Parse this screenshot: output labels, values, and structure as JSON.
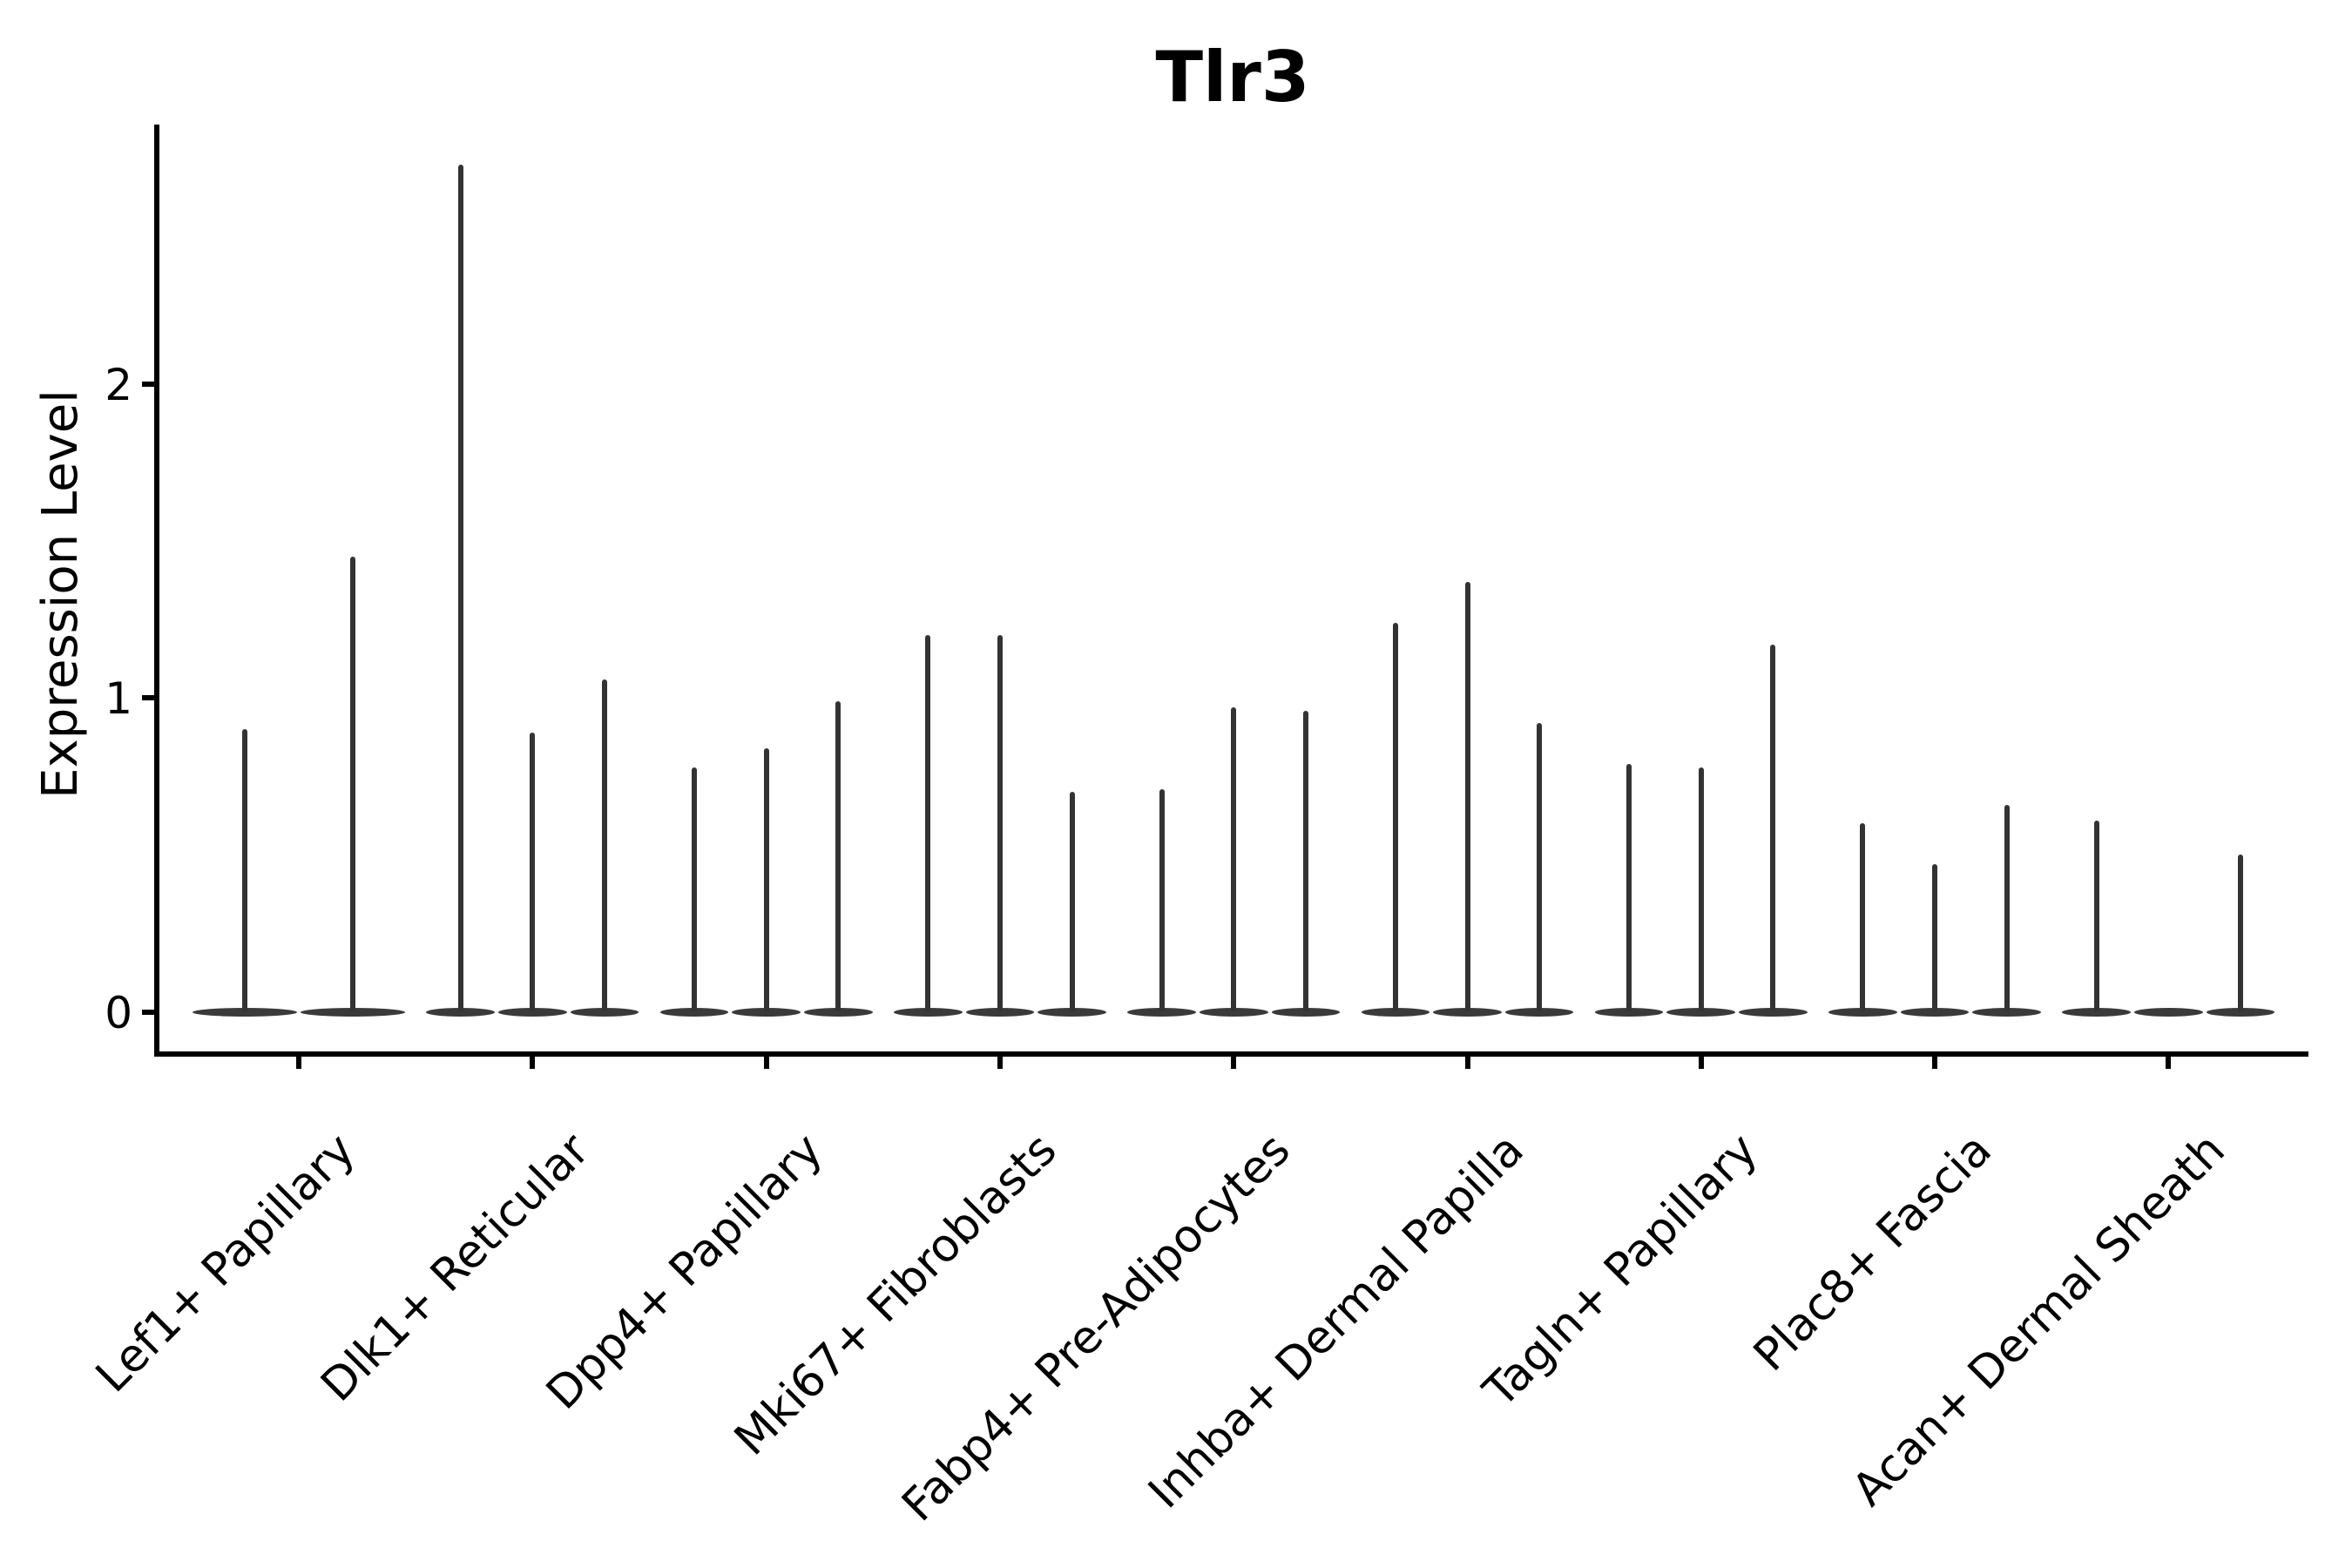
{
  "chart_data": {
    "type": "violin",
    "title": "Tlr3",
    "ylabel": "Expression Level",
    "xlabel": "",
    "ylim": [
      0,
      2.83
    ],
    "yticks": [
      0,
      1,
      2
    ],
    "grid": false,
    "legend": false,
    "colors": {
      "violin_spike": "#333333",
      "violin_body": "#3a3a3a",
      "axis": "#000000",
      "text": "#000000",
      "background": "#ffffff"
    },
    "categories": [
      {
        "label": "Lef1+ Papillary",
        "violin_maxima": [
          0.9,
          1.45
        ]
      },
      {
        "label": "Dlk1+ Reticular",
        "violin_maxima": [
          2.7,
          0.89,
          1.06
        ]
      },
      {
        "label": "Dpp4+ Papillary",
        "violin_maxima": [
          0.78,
          0.84,
          0.99
        ]
      },
      {
        "label": "Mki67+ Fibroblasts",
        "violin_maxima": [
          1.2,
          1.2,
          0.7
        ]
      },
      {
        "label": "Fabp4+ Pre-Adipocytes",
        "violin_maxima": [
          0.71,
          0.97,
          0.96
        ]
      },
      {
        "label": "Inhba+ Dermal Papilla",
        "violin_maxima": [
          1.24,
          1.37,
          0.92
        ]
      },
      {
        "label": "Tagln+ Papillary",
        "violin_maxima": [
          0.79,
          0.78,
          1.17
        ]
      },
      {
        "label": "Plac8+ Fascia",
        "violin_maxima": [
          0.6,
          0.47,
          0.66
        ]
      },
      {
        "label": "Acan+ Dermal Sheath",
        "violin_maxima": [
          0.61,
          null,
          0.5
        ]
      }
    ]
  }
}
